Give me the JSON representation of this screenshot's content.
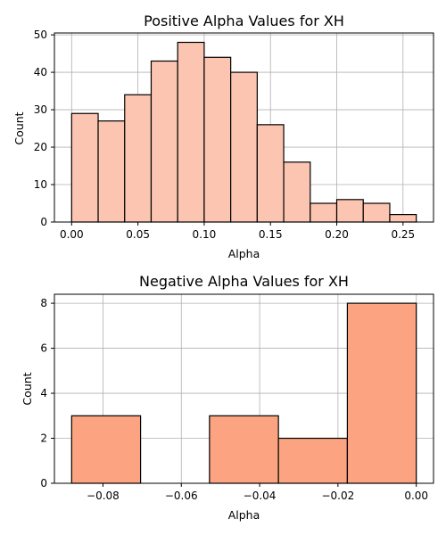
{
  "chart_data": [
    {
      "type": "bar",
      "title": "Positive Alpha Values for XH",
      "xlabel": "Alpha",
      "ylabel": "Count",
      "bin_edges": [
        0.0,
        0.02,
        0.04,
        0.06,
        0.08,
        0.1,
        0.12,
        0.14,
        0.16,
        0.18,
        0.2,
        0.22,
        0.24,
        0.26
      ],
      "values": [
        29,
        27,
        34,
        43,
        48,
        44,
        40,
        26,
        16,
        5,
        6,
        5,
        2
      ],
      "xlim": [
        -0.013,
        0.273
      ],
      "ylim": [
        0,
        50.5
      ],
      "xticks": [
        "0.00",
        "0.05",
        "0.10",
        "0.15",
        "0.20",
        "0.25"
      ],
      "xtick_values": [
        0.0,
        0.05,
        0.1,
        0.15,
        0.2,
        0.25
      ],
      "yticks": [
        "0",
        "10",
        "20",
        "30",
        "40",
        "50"
      ],
      "ytick_values": [
        0,
        10,
        20,
        30,
        40,
        50
      ],
      "grid": true,
      "bar_color": "#fcc5b1",
      "edge_color": "#000000"
    },
    {
      "type": "bar",
      "title": "Negative Alpha Values for XH",
      "xlabel": "Alpha",
      "ylabel": "Count",
      "bin_edges": [
        -0.088,
        -0.0704,
        -0.0528,
        -0.0352,
        -0.0176,
        0.0
      ],
      "values": [
        3,
        0,
        3,
        2,
        8
      ],
      "xlim": [
        -0.0924,
        0.0044
      ],
      "ylim": [
        0,
        8.4
      ],
      "xticks": [
        "−0.08",
        "−0.06",
        "−0.04",
        "−0.02",
        "0.00"
      ],
      "xtick_values": [
        -0.08,
        -0.06,
        -0.04,
        -0.02,
        0.0
      ],
      "yticks": [
        "0",
        "2",
        "4",
        "6",
        "8"
      ],
      "ytick_values": [
        0,
        2,
        4,
        6,
        8
      ],
      "grid": true,
      "bar_color": "#fca481",
      "edge_color": "#000000"
    }
  ]
}
